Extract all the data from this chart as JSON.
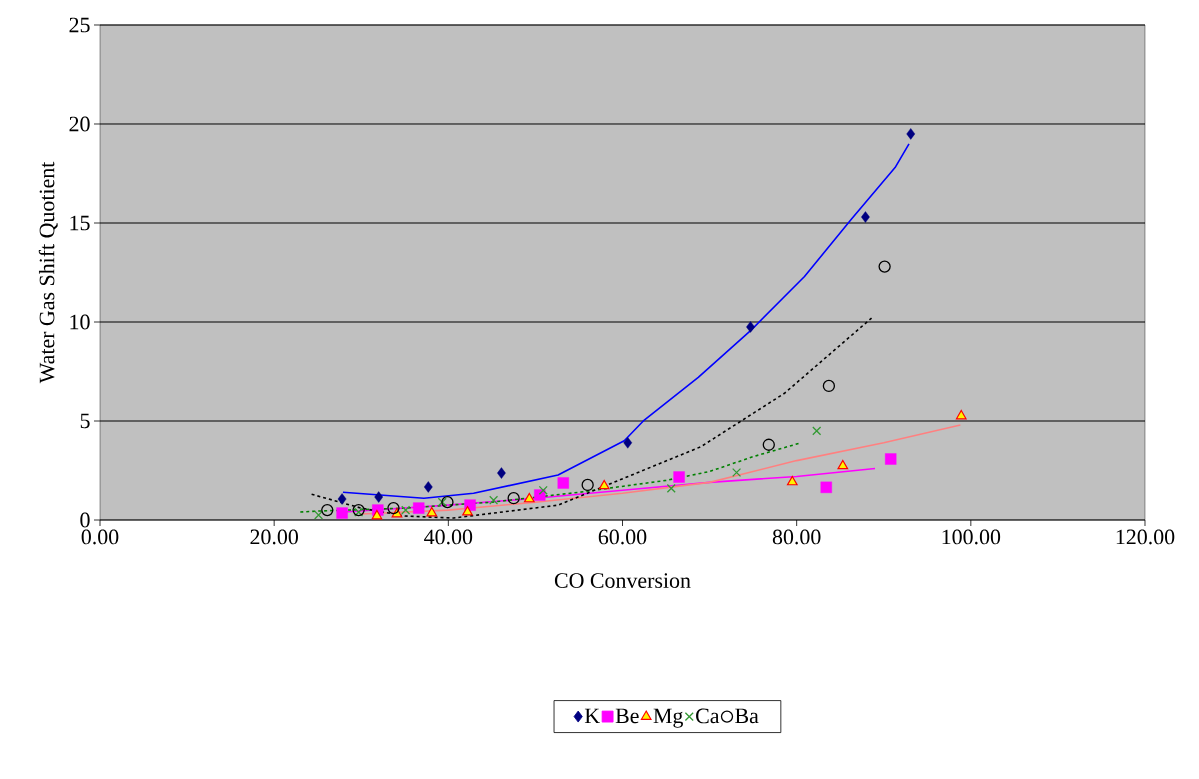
{
  "chart_data": {
    "type": "scatter",
    "xlabel": "CO Conversion",
    "ylabel": "Water Gas Shift Quotient",
    "xlim": [
      0,
      120
    ],
    "ylim": [
      0,
      25
    ],
    "xticks": [
      {
        "value": 0,
        "label": "0.00"
      },
      {
        "value": 20,
        "label": "20.00"
      },
      {
        "value": 40,
        "label": "40.00"
      },
      {
        "value": 60,
        "label": "60.00"
      },
      {
        "value": 80,
        "label": "80.00"
      },
      {
        "value": 100,
        "label": "100.00"
      },
      {
        "value": 120,
        "label": "120.00"
      }
    ],
    "yticks": [
      0,
      5,
      10,
      15,
      20,
      25
    ],
    "grid": "y",
    "legend": "bottom",
    "series": [
      {
        "name": "K",
        "color": "#000080",
        "marker": "diamond",
        "x": [
          27.8,
          32.0,
          37.7,
          46.1,
          60.6,
          74.7,
          87.9,
          93.1
        ],
        "values": [
          1.06,
          1.16,
          1.67,
          2.37,
          3.9,
          9.75,
          15.3,
          19.5
        ]
      },
      {
        "name": "Be",
        "color": "#ff00ff",
        "marker": "square",
        "x": [
          27.8,
          31.9,
          36.6,
          42.5,
          50.5,
          53.2,
          66.5,
          83.4,
          90.8
        ],
        "values": [
          0.35,
          0.5,
          0.6,
          0.75,
          1.26,
          1.87,
          2.17,
          1.65,
          3.08
        ]
      },
      {
        "name": "Mg",
        "color": "#ff0000",
        "marker": "triangle",
        "x": [
          31.8,
          34.1,
          38.1,
          42.2,
          49.3,
          57.9,
          79.5,
          85.3,
          98.9
        ],
        "values": [
          0.2,
          0.3,
          0.35,
          0.4,
          1.06,
          1.72,
          1.92,
          2.73,
          5.25
        ]
      },
      {
        "name": "Ca",
        "color": "#339933",
        "marker": "cross",
        "x": [
          25.1,
          29.7,
          35.1,
          39.3,
          45.2,
          50.9,
          65.6,
          73.1,
          82.3
        ],
        "values": [
          0.25,
          0.4,
          0.5,
          0.9,
          1.0,
          1.5,
          1.6,
          2.4,
          4.5
        ]
      },
      {
        "name": "Ba",
        "color": "#000000",
        "marker": "circle",
        "x": [
          26.1,
          29.7,
          33.7,
          39.9,
          47.5,
          56.0,
          76.8,
          83.7,
          90.1
        ],
        "values": [
          0.5,
          0.5,
          0.6,
          0.9,
          1.1,
          1.77,
          3.8,
          6.77,
          12.8
        ]
      },
      {
        "type": "line",
        "color": "#0000ff",
        "line_style": "solid",
        "marker": "none",
        "x": [
          27.9,
          37.2,
          42.9,
          52.6,
          60.2,
          62.5,
          68.7,
          74.8,
          80.9,
          86.3,
          91.3,
          92.9
        ],
        "values": [
          1.4,
          1.1,
          1.35,
          2.27,
          4.0,
          5.05,
          7.2,
          9.6,
          12.3,
          15.2,
          17.8,
          19.0
        ]
      },
      {
        "type": "line",
        "color": "#ff00ff",
        "line_style": "solid",
        "marker": "none",
        "x": [
          28,
          40,
          50,
          60,
          70,
          80,
          89
        ],
        "values": [
          0.4,
          0.75,
          1.1,
          1.5,
          1.9,
          2.2,
          2.6
        ]
      },
      {
        "type": "line",
        "color": "#ff8080",
        "line_style": "solid",
        "marker": "none",
        "x": [
          30,
          40,
          50,
          60,
          70,
          80,
          90,
          98.8
        ],
        "values": [
          0.3,
          0.5,
          0.9,
          1.35,
          1.9,
          3.0,
          3.9,
          4.8
        ]
      },
      {
        "type": "line",
        "color": "#008000",
        "line_style": "dashed",
        "marker": "none",
        "x": [
          23,
          25,
          35,
          45,
          55,
          65,
          70,
          75,
          80.5
        ],
        "values": [
          0.4,
          0.45,
          0.6,
          0.9,
          1.4,
          2.0,
          2.45,
          3.2,
          3.9
        ]
      },
      {
        "type": "line",
        "color": "#000000",
        "line_style": "dashed",
        "marker": "none",
        "x": [
          24.3,
          30,
          35,
          40.6,
          52.6,
          69,
          78.6,
          88.6
        ],
        "values": [
          1.3,
          0.6,
          0.2,
          0.1,
          0.75,
          3.7,
          6.4,
          10.2
        ]
      }
    ]
  }
}
